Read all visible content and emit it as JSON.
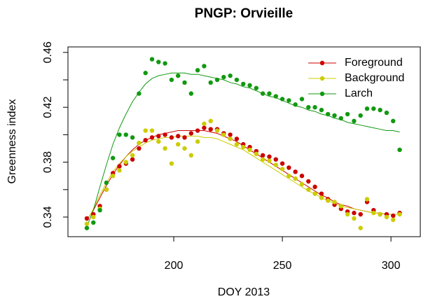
{
  "chart_data": {
    "type": "scatter",
    "title": "PNGP: Orvieille",
    "x_label": "DOY 2013",
    "y_label": "Greenness index",
    "x": [
      160,
      163,
      166,
      169,
      172,
      175,
      178,
      181,
      184,
      187,
      190,
      193,
      196,
      199,
      202,
      205,
      208,
      211,
      214,
      217,
      220,
      223,
      226,
      229,
      232,
      235,
      238,
      241,
      244,
      247,
      250,
      253,
      256,
      259,
      262,
      265,
      268,
      271,
      274,
      277,
      280,
      283,
      286,
      289,
      292,
      295,
      298,
      301,
      304
    ],
    "series": [
      {
        "name": "Foreground",
        "color": "#cc0000",
        "values": [
          0.339,
          0.342,
          0.348,
          0.36,
          0.372,
          0.377,
          0.379,
          0.382,
          0.39,
          0.396,
          0.398,
          0.399,
          0.4,
          0.398,
          0.399,
          0.398,
          0.401,
          0.403,
          0.405,
          0.404,
          0.404,
          0.401,
          0.4,
          0.397,
          0.393,
          0.391,
          0.388,
          0.385,
          0.384,
          0.382,
          0.379,
          0.376,
          0.373,
          0.37,
          0.366,
          0.362,
          0.357,
          0.353,
          0.349,
          0.346,
          0.344,
          0.343,
          0.342,
          0.351,
          0.345,
          0.342,
          0.342,
          0.341,
          0.343
        ],
        "fit": [
          0.338,
          0.345,
          0.354,
          0.363,
          0.371,
          0.378,
          0.384,
          0.389,
          0.393,
          0.396,
          0.398,
          0.4,
          0.401,
          0.402,
          0.403,
          0.403,
          0.403,
          0.403,
          0.403,
          0.402,
          0.401,
          0.399,
          0.397,
          0.395,
          0.392,
          0.389,
          0.386,
          0.383,
          0.38,
          0.377,
          0.374,
          0.371,
          0.368,
          0.365,
          0.362,
          0.359,
          0.356,
          0.354,
          0.351,
          0.349,
          0.348,
          0.346,
          0.345,
          0.344,
          0.343,
          0.343,
          0.342,
          0.342,
          0.342
        ]
      },
      {
        "name": "Background",
        "color": "#cccc00",
        "values": [
          0.335,
          0.34,
          0.346,
          0.36,
          0.37,
          0.374,
          0.38,
          0.385,
          0.394,
          0.403,
          0.403,
          0.395,
          0.39,
          0.379,
          0.393,
          0.39,
          0.385,
          0.395,
          0.408,
          0.41,
          0.403,
          0.4,
          0.397,
          0.393,
          0.391,
          0.389,
          0.386,
          0.382,
          0.381,
          0.378,
          0.375,
          0.37,
          0.368,
          0.364,
          0.36,
          0.357,
          0.354,
          0.352,
          0.351,
          0.348,
          0.342,
          0.339,
          0.332,
          0.353,
          0.343,
          0.342,
          0.34,
          0.338,
          0.342
        ],
        "fit": [
          0.337,
          0.346,
          0.356,
          0.365,
          0.373,
          0.379,
          0.384,
          0.388,
          0.391,
          0.394,
          0.396,
          0.397,
          0.398,
          0.398,
          0.399,
          0.399,
          0.399,
          0.399,
          0.398,
          0.398,
          0.397,
          0.395,
          0.393,
          0.391,
          0.389,
          0.386,
          0.383,
          0.38,
          0.377,
          0.374,
          0.371,
          0.368,
          0.365,
          0.362,
          0.359,
          0.357,
          0.354,
          0.352,
          0.35,
          0.348,
          0.347,
          0.346,
          0.345,
          0.344,
          0.343,
          0.343,
          0.342,
          0.342,
          0.342
        ]
      },
      {
        "name": "Larch",
        "color": "#119911",
        "values": [
          0.332,
          0.336,
          0.345,
          0.365,
          0.383,
          0.4,
          0.4,
          0.398,
          0.43,
          0.445,
          0.455,
          0.453,
          0.452,
          0.44,
          0.443,
          0.438,
          0.43,
          0.447,
          0.45,
          0.438,
          0.44,
          0.442,
          0.443,
          0.44,
          0.437,
          0.436,
          0.434,
          0.43,
          0.43,
          0.428,
          0.426,
          0.425,
          0.422,
          0.426,
          0.42,
          0.42,
          0.418,
          0.415,
          0.414,
          0.412,
          0.415,
          0.41,
          0.414,
          0.419,
          0.419,
          0.418,
          0.416,
          0.41,
          0.389
        ],
        "fit": [
          0.333,
          0.345,
          0.362,
          0.378,
          0.393,
          0.405,
          0.415,
          0.424,
          0.431,
          0.437,
          0.441,
          0.443,
          0.444,
          0.445,
          0.445,
          0.445,
          0.444,
          0.444,
          0.443,
          0.442,
          0.441,
          0.44,
          0.438,
          0.437,
          0.435,
          0.434,
          0.432,
          0.43,
          0.428,
          0.427,
          0.425,
          0.423,
          0.421,
          0.42,
          0.418,
          0.417,
          0.415,
          0.414,
          0.412,
          0.411,
          0.409,
          0.408,
          0.407,
          0.406,
          0.405,
          0.404,
          0.403,
          0.403,
          0.402
        ]
      }
    ],
    "xlim": [
      151.3,
      313.5
    ],
    "xticks": [
      200,
      250,
      300
    ],
    "ylim": [
      0.3257,
      0.464
    ],
    "yticks": [
      0.34,
      {
        "value": 0.36,
        "label": null
      },
      0.38,
      {
        "value": 0.4,
        "label": null
      },
      0.42,
      {
        "value": 0.44,
        "label": null
      },
      0.46
    ],
    "legend": "top-right"
  }
}
